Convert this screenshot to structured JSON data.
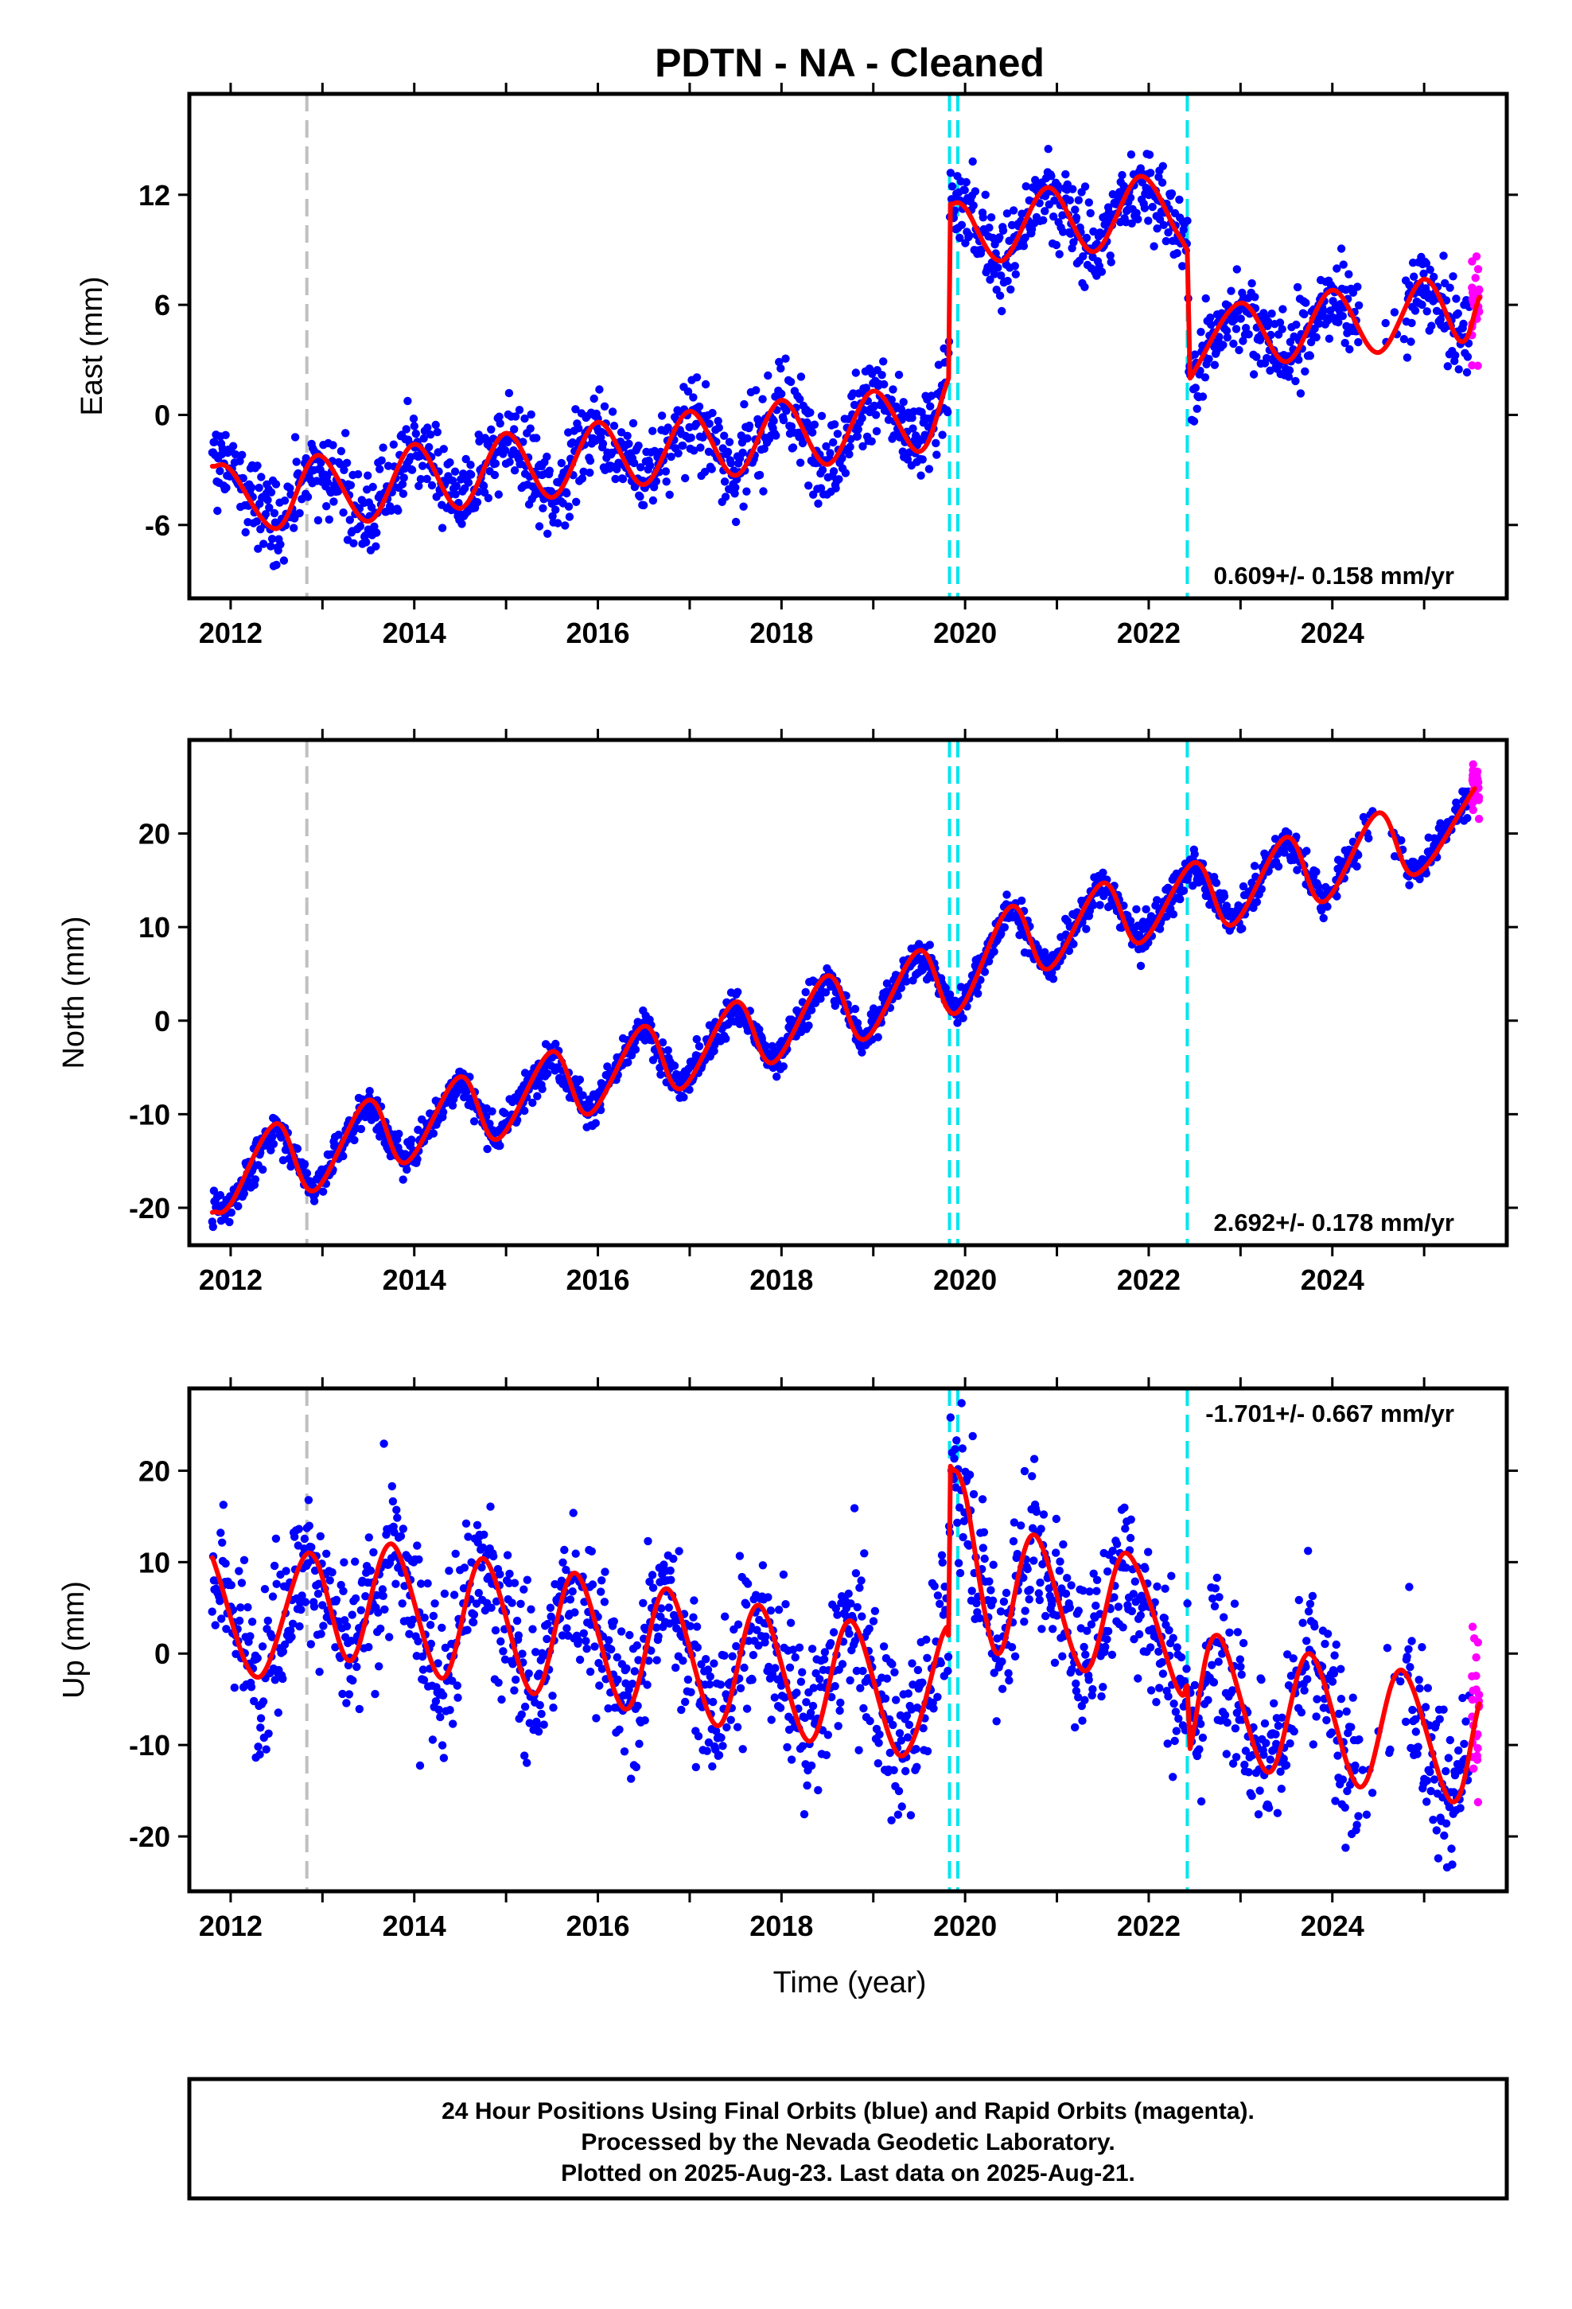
{
  "title": "PDTN  - NA - Cleaned",
  "xlabel": "Time (year)",
  "footer": [
    "24 Hour Positions Using Final Orbits (blue) and Rapid Orbits (magenta).",
    "Processed by the Nevada Geodetic Laboratory.",
    "Plotted on 2025-Aug-23. Last data on 2025-Aug-21."
  ],
  "colors": {
    "final_orbits": "#0000ff",
    "rapid_orbits": "#ff00ff",
    "model": "#ff0000",
    "equipment_change": "#00e5ee",
    "other_event": "#c0c0c0"
  },
  "chart_data": [
    {
      "type": "scatter",
      "panel": "east",
      "ylabel": "East (mm)",
      "xlim": [
        2011.55,
        2025.9
      ],
      "ylim": [
        -10,
        17.5
      ],
      "xticks": [
        "2012",
        "2014",
        "2016",
        "2018",
        "2020",
        "2022",
        "2024"
      ],
      "yticks": [
        "-6",
        "0",
        "6",
        "12"
      ],
      "rate_label": "0.609+/- 0.158 mm/yr",
      "rate_position": "bottom-right",
      "events": [
        {
          "x": 2012.83,
          "kind": "other"
        },
        {
          "x": 2019.83,
          "kind": "equipment"
        },
        {
          "x": 2019.92,
          "kind": "equipment"
        },
        {
          "x": 2022.42,
          "kind": "equipment"
        }
      ],
      "model": {
        "x": [
          2011.8,
          2012.0,
          2012.5,
          2012.95,
          2013.5,
          2014.0,
          2014.5,
          2015.0,
          2015.5,
          2016.0,
          2016.5,
          2017.0,
          2017.5,
          2018.0,
          2018.5,
          2019.0,
          2019.5,
          2019.82,
          2019.84,
          2020.0,
          2020.4,
          2020.9,
          2021.4,
          2021.9,
          2022.3,
          2022.42,
          2022.45,
          2023.0,
          2023.5,
          2024.0,
          2024.5,
          2025.0,
          2025.4,
          2025.6
        ],
        "y": [
          -2.8,
          -3.0,
          -6.2,
          -2.2,
          -5.8,
          -1.6,
          -5.1,
          -1.0,
          -4.5,
          -0.4,
          -3.8,
          0.2,
          -3.3,
          0.8,
          -2.7,
          1.3,
          -2.0,
          2.0,
          11.5,
          11.3,
          8.4,
          12.4,
          8.9,
          13.0,
          10.0,
          9.0,
          2.0,
          6.1,
          2.9,
          6.8,
          3.4,
          7.4,
          4.0,
          6.4
        ]
      },
      "series_desc": "Final orbits (blue) daily positions scatter around the model; rapid orbits (magenta) at the end of the record."
    },
    {
      "type": "scatter",
      "panel": "north",
      "ylabel": "North (mm)",
      "xlim": [
        2011.55,
        2025.9
      ],
      "ylim": [
        -24,
        30
      ],
      "xticks": [
        "2012",
        "2014",
        "2016",
        "2018",
        "2020",
        "2022",
        "2024"
      ],
      "yticks": [
        "-20",
        "-10",
        "0",
        "10",
        "20"
      ],
      "rate_label": "2.692+/- 0.178 mm/yr",
      "rate_position": "bottom-right",
      "events": [
        {
          "x": 2012.83,
          "kind": "other"
        },
        {
          "x": 2019.83,
          "kind": "equipment"
        },
        {
          "x": 2019.92,
          "kind": "equipment"
        },
        {
          "x": 2022.42,
          "kind": "equipment"
        }
      ],
      "model": {
        "x": [
          2011.8,
          2012.0,
          2012.5,
          2012.9,
          2013.5,
          2013.9,
          2014.5,
          2014.9,
          2015.5,
          2015.9,
          2016.5,
          2016.9,
          2017.5,
          2017.9,
          2018.5,
          2018.9,
          2019.5,
          2019.9,
          2020.5,
          2020.9,
          2021.5,
          2021.9,
          2022.5,
          2022.9,
          2023.5,
          2023.9,
          2024.5,
          2024.9,
          2025.55
        ],
        "y": [
          -20.5,
          -19.6,
          -11.0,
          -18.2,
          -8.5,
          -15.2,
          -6.0,
          -12.7,
          -3.3,
          -10.0,
          -0.6,
          -7.3,
          2.0,
          -4.5,
          4.8,
          -2.0,
          7.5,
          0.8,
          12.2,
          5.5,
          14.7,
          8.3,
          16.9,
          10.2,
          19.6,
          12.7,
          22.2,
          15.6,
          24.8
        ]
      },
      "series_desc": "Final orbits (blue) daily positions scatter around the model; rapid orbits (magenta) at the end of the record."
    },
    {
      "type": "scatter",
      "panel": "up",
      "ylabel": "Up (mm)",
      "xlim": [
        2011.55,
        2025.9
      ],
      "ylim": [
        -26,
        29
      ],
      "xticks": [
        "2012",
        "2014",
        "2016",
        "2018",
        "2020",
        "2022",
        "2024"
      ],
      "yticks": [
        "-20",
        "-10",
        "0",
        "10",
        "20"
      ],
      "rate_label": "-1.701+/- 0.667 mm/yr",
      "rate_position": "top-right",
      "events": [
        {
          "x": 2012.83,
          "kind": "other"
        },
        {
          "x": 2019.83,
          "kind": "equipment"
        },
        {
          "x": 2019.92,
          "kind": "equipment"
        },
        {
          "x": 2022.42,
          "kind": "equipment"
        }
      ],
      "model": {
        "x": [
          2011.8,
          2012.3,
          2012.85,
          2013.3,
          2013.75,
          2014.3,
          2014.75,
          2015.3,
          2015.75,
          2016.3,
          2016.75,
          2017.3,
          2017.75,
          2018.3,
          2018.75,
          2019.3,
          2019.75,
          2019.82,
          2019.84,
          2020.0,
          2020.35,
          2020.75,
          2021.3,
          2021.75,
          2022.3,
          2022.42,
          2022.45,
          2022.75,
          2023.3,
          2023.75,
          2024.3,
          2024.75,
          2025.3,
          2025.6
        ],
        "y": [
          10.5,
          -2.6,
          11.0,
          -0.8,
          12.0,
          -2.7,
          10.4,
          -4.4,
          8.8,
          -6.1,
          7.1,
          -7.9,
          5.3,
          -9.6,
          3.6,
          -11.2,
          1.9,
          2.0,
          20.5,
          17.5,
          0.0,
          13.0,
          -1.9,
          11.0,
          -3.5,
          -3.5,
          -10.4,
          2.0,
          -13.0,
          0.0,
          -14.6,
          -1.8,
          -16.2,
          -5.5
        ]
      },
      "series_desc": "Final orbits (blue) daily positions scatter around the model; rapid orbits (magenta) at the end of the record."
    }
  ]
}
